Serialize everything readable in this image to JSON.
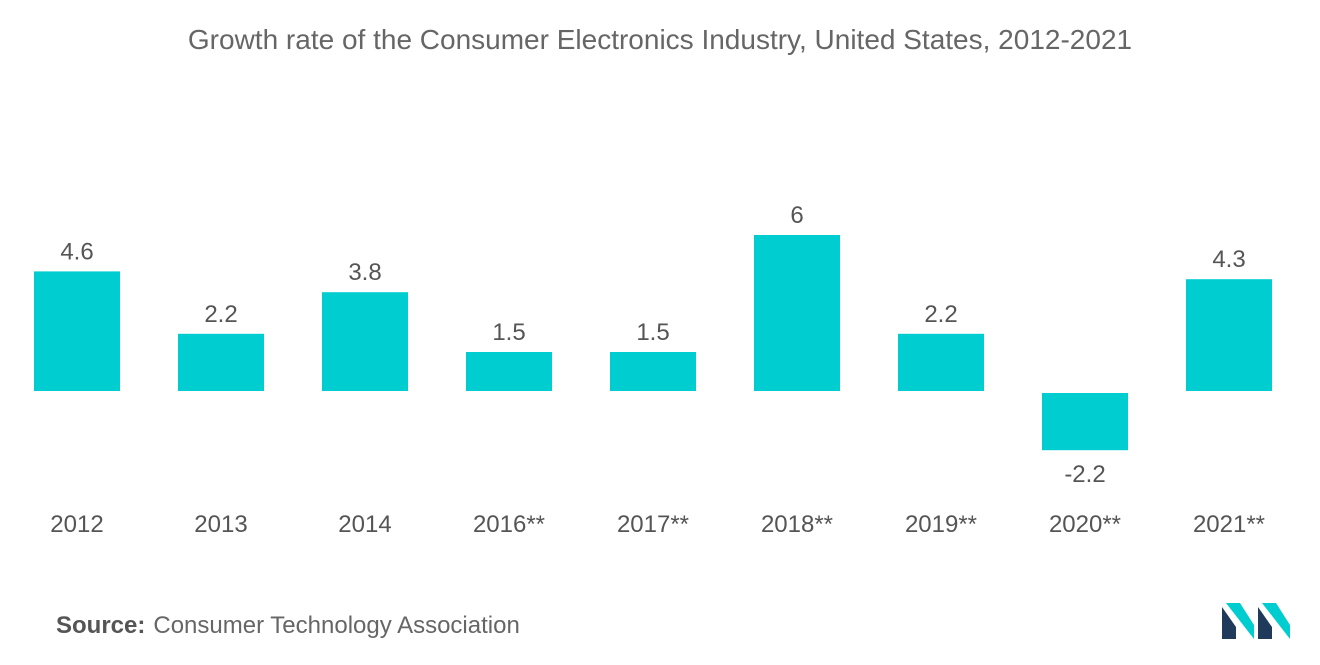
{
  "colors": {
    "bar": "#00CDD0",
    "text": "#555555",
    "logo_dark": "#1f3a5a",
    "logo_light": "#00CDD0"
  },
  "chart_data": {
    "type": "bar",
    "title": "Growth rate of the Consumer Electronics Industry, United States, 2012-2021",
    "categories": [
      "2012",
      "2013",
      "2014",
      "2016**",
      "2017**",
      "2018**",
      "2019**",
      "2020**",
      "2021**"
    ],
    "values": [
      4.6,
      2.2,
      3.8,
      1.5,
      1.5,
      6,
      2.2,
      -2.2,
      4.3
    ],
    "value_labels": [
      "4.6",
      "2.2",
      "3.8",
      "1.5",
      "1.5",
      "6",
      "2.2",
      "-2.2",
      "4.3"
    ],
    "xlabel": "",
    "ylabel": "",
    "ylim": [
      -2.2,
      6
    ],
    "grid": false,
    "legend": "none"
  },
  "source": {
    "label": "Source:",
    "text": "Consumer Technology Association"
  },
  "logo": {
    "icon": "mordor-intelligence-logo-icon"
  }
}
